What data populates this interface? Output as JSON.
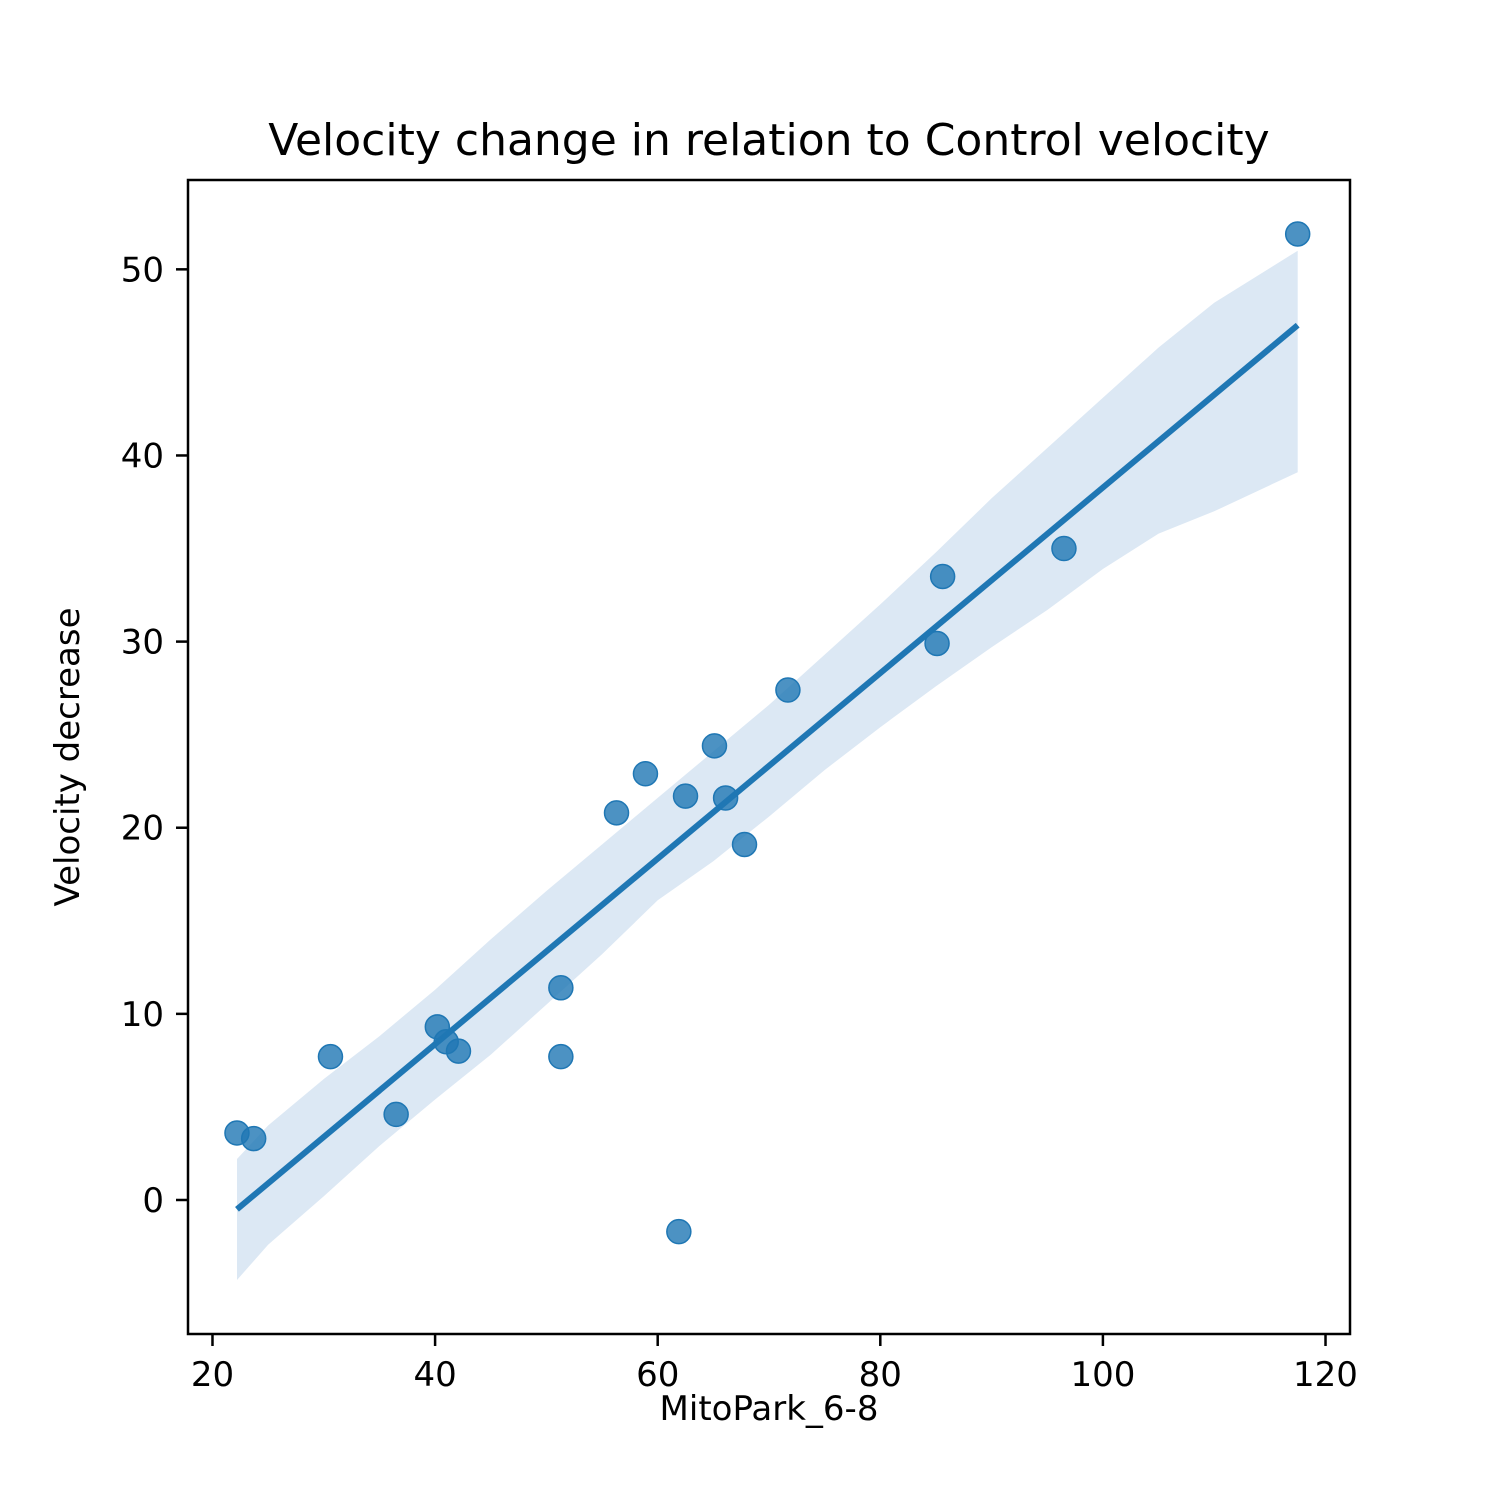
{
  "chart_data": {
    "type": "scatter",
    "title": "Velocity change in relation to Control velocity",
    "xlabel": "MitoPark_6-8",
    "ylabel": "Velocity decrease",
    "xlim": [
      17.8,
      122.2
    ],
    "ylim": [
      -7.2,
      54.8
    ],
    "xticks": [
      20,
      40,
      60,
      80,
      100,
      120
    ],
    "yticks": [
      0,
      10,
      20,
      30,
      40,
      50
    ],
    "grid": false,
    "colors": {
      "points": "#1f77b4",
      "line": "#1f77b4",
      "band": "#dce8f4"
    },
    "points": [
      {
        "x": 22.2,
        "y": 3.6
      },
      {
        "x": 23.7,
        "y": 3.3
      },
      {
        "x": 30.6,
        "y": 7.7
      },
      {
        "x": 36.5,
        "y": 4.6
      },
      {
        "x": 40.2,
        "y": 9.3
      },
      {
        "x": 41.0,
        "y": 8.5
      },
      {
        "x": 42.1,
        "y": 8.0
      },
      {
        "x": 51.3,
        "y": 11.4
      },
      {
        "x": 51.3,
        "y": 7.7
      },
      {
        "x": 56.3,
        "y": 20.8
      },
      {
        "x": 58.9,
        "y": 22.9
      },
      {
        "x": 61.9,
        "y": -1.7
      },
      {
        "x": 62.5,
        "y": 21.7
      },
      {
        "x": 65.1,
        "y": 24.4
      },
      {
        "x": 66.1,
        "y": 21.6
      },
      {
        "x": 67.8,
        "y": 19.1
      },
      {
        "x": 71.7,
        "y": 27.4
      },
      {
        "x": 85.1,
        "y": 29.9
      },
      {
        "x": 85.6,
        "y": 33.5
      },
      {
        "x": 96.5,
        "y": 35.0
      },
      {
        "x": 117.5,
        "y": 51.9
      }
    ],
    "regression": {
      "x": [
        22.2,
        117.5
      ],
      "y": [
        -0.5,
        47.0
      ]
    },
    "confidence_band": {
      "x": [
        22.2,
        25,
        30,
        35,
        40,
        45,
        50,
        55,
        60,
        65,
        70,
        75,
        80,
        85,
        90,
        95,
        100,
        105,
        110,
        117.5
      ],
      "upper": [
        2.2,
        4.0,
        6.5,
        8.8,
        11.3,
        14.0,
        16.6,
        19.1,
        21.6,
        24.1,
        26.6,
        29.3,
        32.0,
        34.8,
        37.7,
        40.4,
        43.1,
        45.8,
        48.2,
        51.0
      ],
      "lower": [
        -4.3,
        -2.4,
        0.2,
        2.9,
        5.4,
        7.8,
        10.5,
        13.2,
        16.1,
        18.2,
        20.6,
        23.1,
        25.4,
        27.6,
        29.7,
        31.7,
        33.9,
        35.8,
        37.0,
        39.1
      ]
    }
  }
}
